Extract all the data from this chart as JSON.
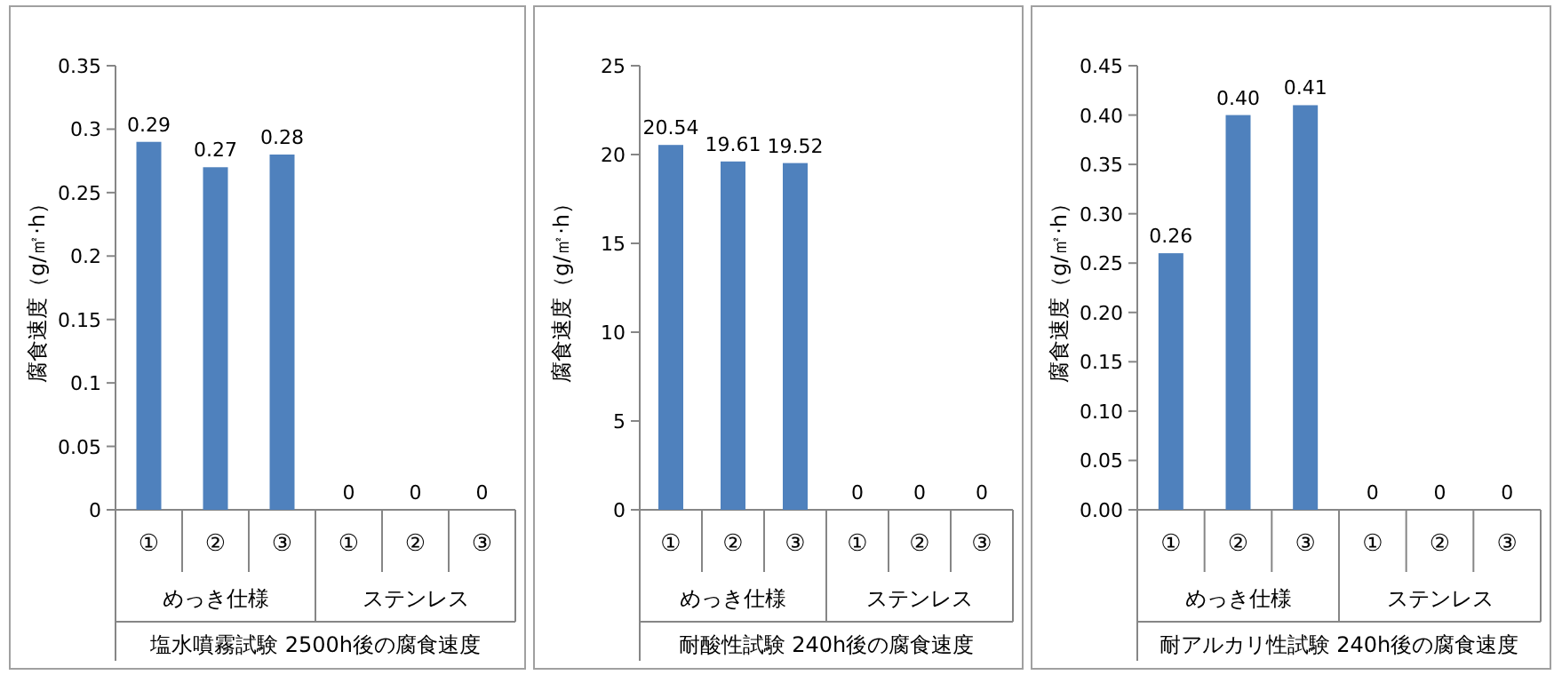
{
  "chart_data": [
    {
      "type": "bar",
      "xlabel": "塩水噴霧試験 2500h後の腐食速度",
      "ylabel": "腐食速度（g/㎡·h）",
      "categories": [
        "①",
        "②",
        "③",
        "①",
        "②",
        "③"
      ],
      "annotations": [
        "めっき仕様",
        "ステンレス"
      ],
      "values": [
        0.29,
        0.27,
        0.28,
        0,
        0,
        0
      ],
      "value_labels": [
        "0.29",
        "0.27",
        "0.28",
        "0",
        "0",
        "0"
      ],
      "color": "#4f81bd",
      "ylim": [
        0,
        0.35
      ],
      "yticks": [
        0,
        0.05,
        0.1,
        0.15,
        0.2,
        0.25,
        0.3,
        0.35
      ]
    },
    {
      "type": "bar",
      "xlabel": "耐酸性試験 240h後の腐食速度",
      "ylabel": "腐食速度（g/㎡·h）",
      "categories": [
        "①",
        "②",
        "③",
        "①",
        "②",
        "③"
      ],
      "annotations": [
        "めっき仕様",
        "ステンレス"
      ],
      "values": [
        20.54,
        19.61,
        19.52,
        0,
        0,
        0
      ],
      "value_labels": [
        "20.54",
        "19.61",
        "19.52",
        "0",
        "0",
        "0"
      ],
      "color": "#4f81bd",
      "ylim": [
        0,
        25
      ],
      "yticks": [
        0,
        5,
        10,
        15,
        20,
        25
      ]
    },
    {
      "type": "bar",
      "xlabel": "耐アルカリ性試験 240h後の腐食速度",
      "ylabel": "腐食速度（g/㎡·h）",
      "categories": [
        "①",
        "②",
        "③",
        "①",
        "②",
        "③"
      ],
      "annotations": [
        "めっき仕様",
        "ステンレス"
      ],
      "values": [
        0.26,
        0.4,
        0.41,
        0,
        0,
        0
      ],
      "value_labels": [
        "0.26",
        "0.40",
        "0.41",
        "0",
        "0",
        "0"
      ],
      "color": "#4f81bd",
      "ylim": [
        0,
        0.45
      ],
      "yticks": [
        {
          "value": 0,
          "label": "0.00"
        },
        {
          "value": 0.05,
          "label": "0.05"
        },
        {
          "value": 0.1,
          "label": "0.10"
        },
        {
          "value": 0.15,
          "label": "0.15"
        },
        {
          "value": 0.2,
          "label": "0.20"
        },
        {
          "value": 0.25,
          "label": "0.25"
        },
        {
          "value": 0.3,
          "label": "0.30"
        },
        {
          "value": 0.35,
          "label": "0.35"
        },
        {
          "value": 0.4,
          "label": "0.40"
        },
        {
          "value": 0.45,
          "label": "0.45"
        }
      ]
    }
  ]
}
